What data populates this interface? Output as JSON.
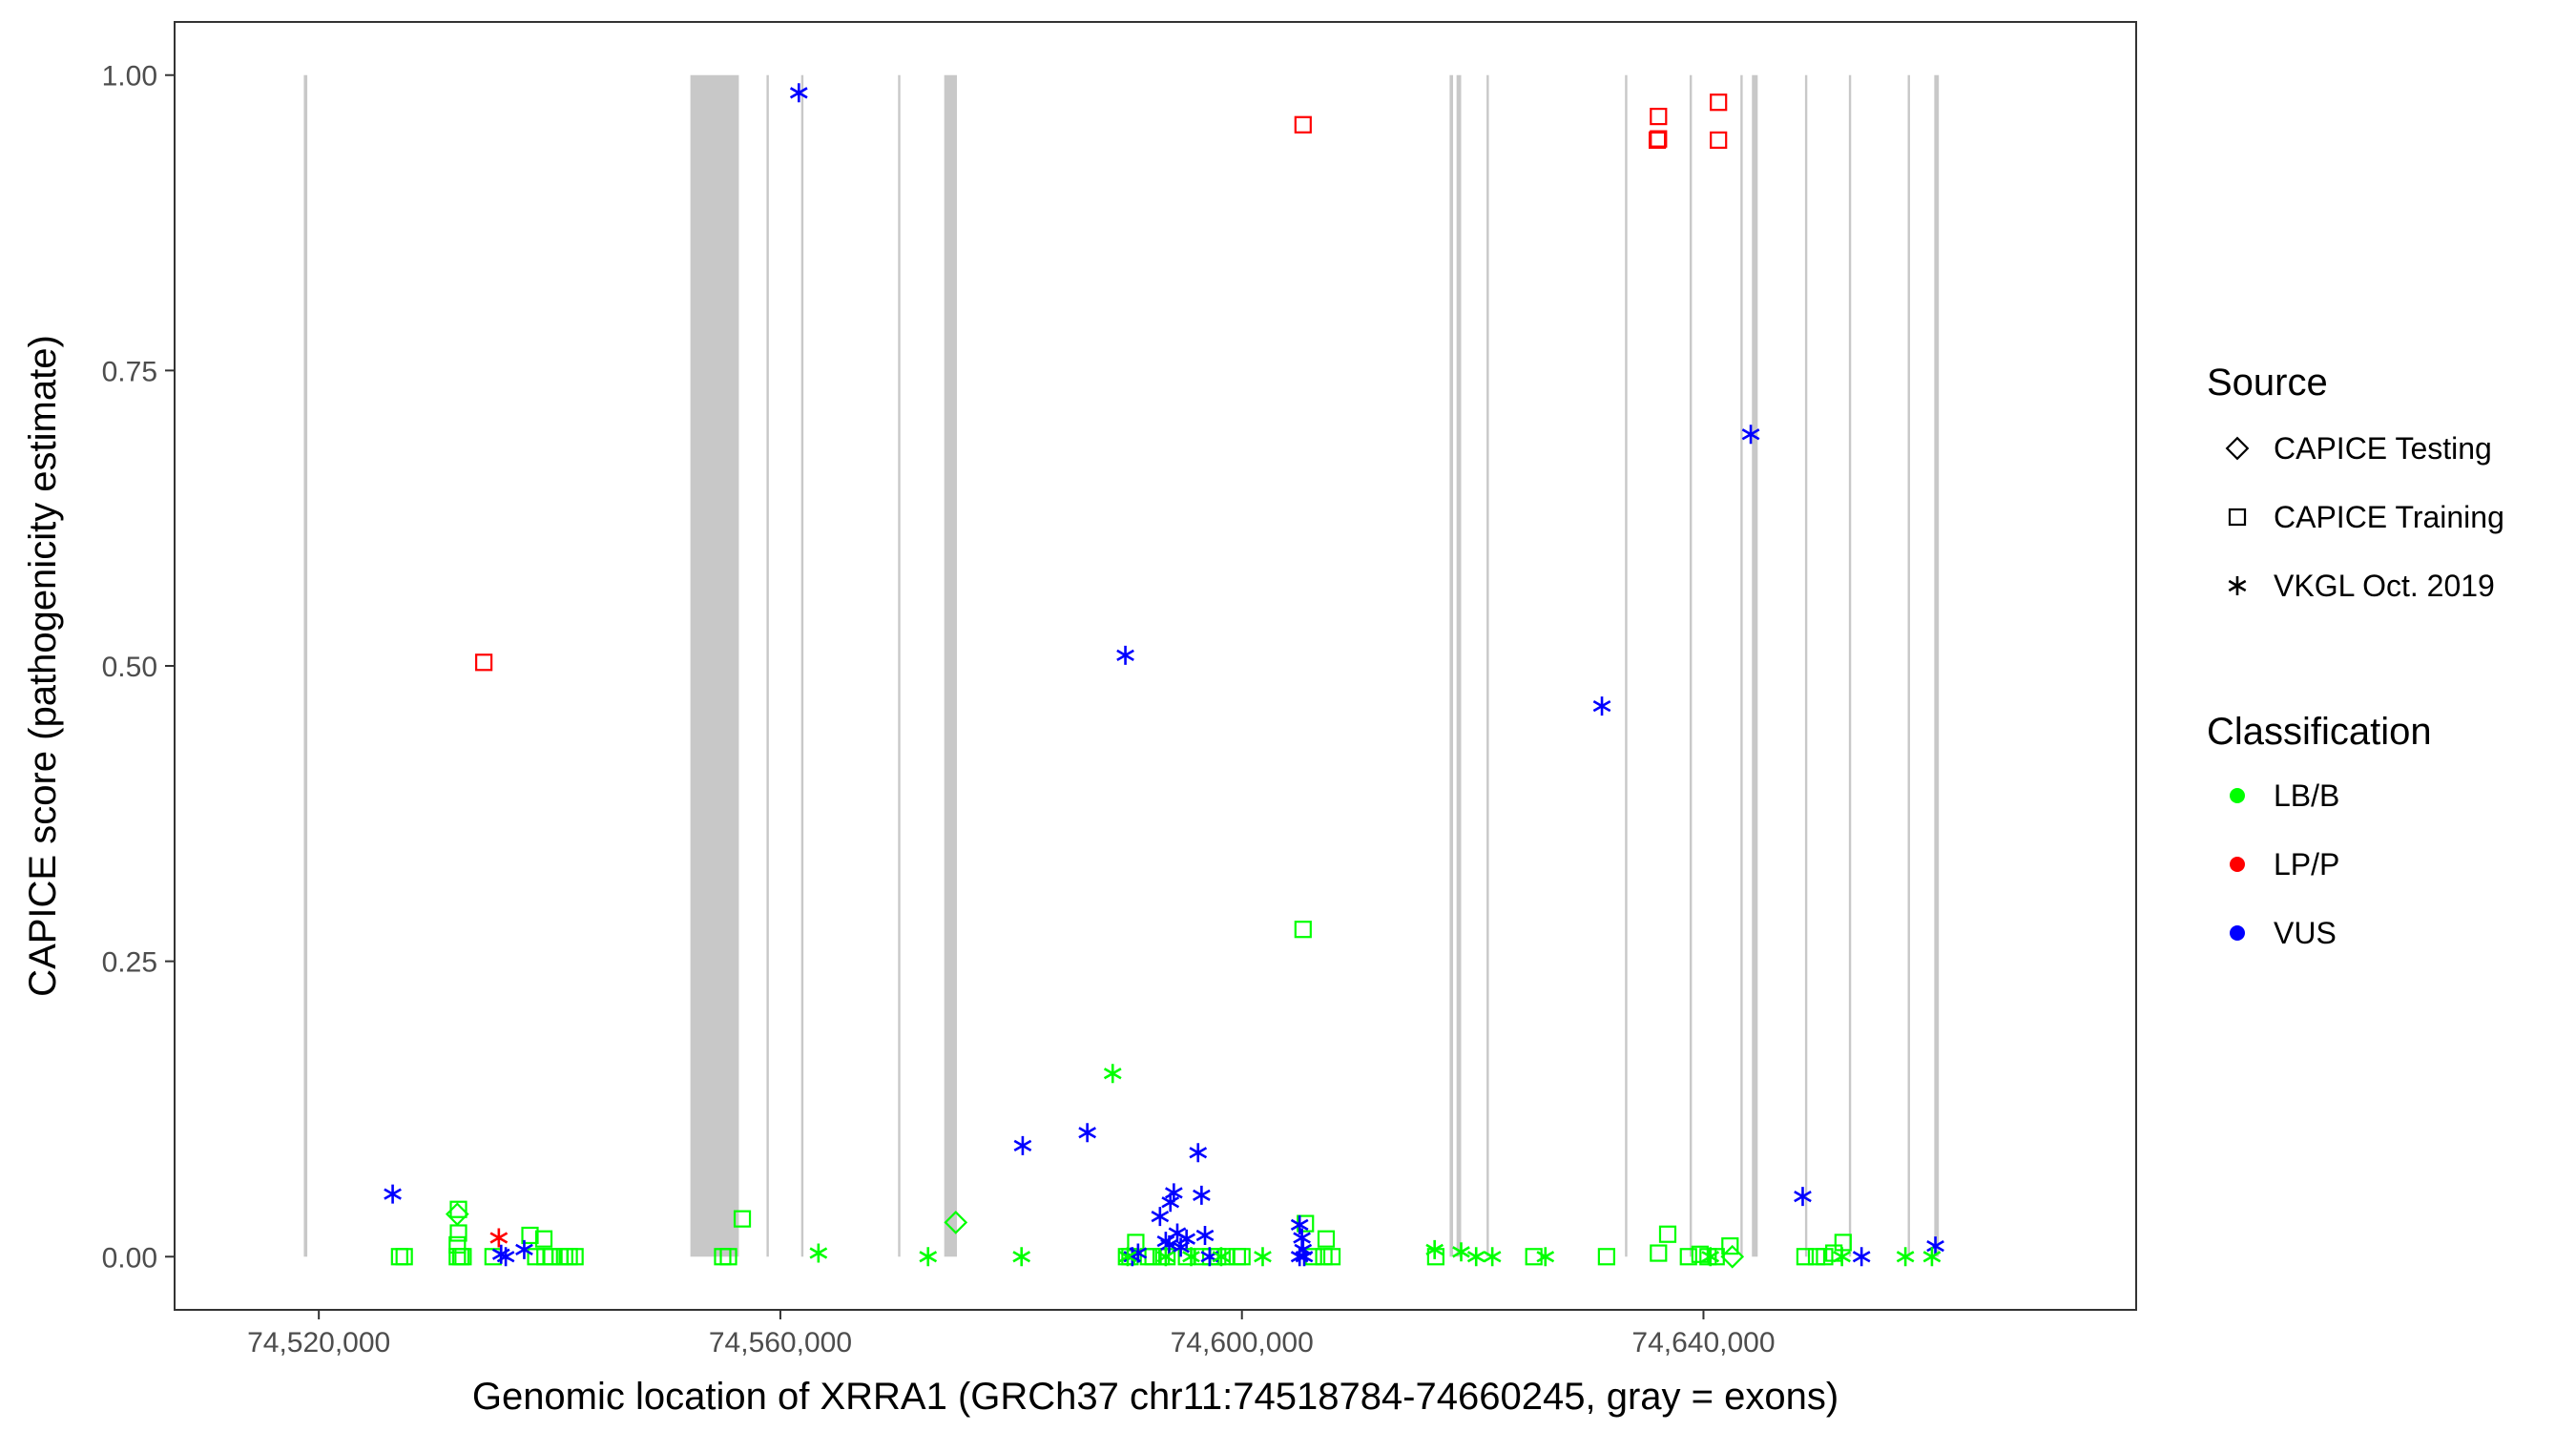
{
  "chart_data": {
    "type": "scatter",
    "xlabel": "Genomic location of XRRA1 (GRCh37 chr11:74518784-74660245, gray = exons)",
    "ylabel": "CAPICE score (pathogenicity estimate)",
    "xlim": [
      74507500,
      74677500
    ],
    "ylim": [
      -0.045,
      1.045
    ],
    "x_ticks": [
      74520000,
      74560000,
      74600000,
      74640000
    ],
    "x_tick_labels": [
      "74,520,000",
      "74,560,000",
      "74,600,000",
      "74,640,000"
    ],
    "y_ticks": [
      0.0,
      0.25,
      0.5,
      0.75,
      1.0
    ],
    "y_tick_labels": [
      "0.00",
      "0.25",
      "0.50",
      "0.75",
      "1.00"
    ],
    "grid": false,
    "legend_position": "right",
    "legend": {
      "shape_title": "Source",
      "shapes": [
        {
          "label": "CAPICE Testing",
          "shape": "diamond"
        },
        {
          "label": "CAPICE Training",
          "shape": "square"
        },
        {
          "label": "VKGL Oct. 2019",
          "shape": "asterisk"
        }
      ],
      "color_title": "Classification",
      "colors": [
        {
          "label": "LB/B",
          "color": "#00ff00"
        },
        {
          "label": "LP/P",
          "color": "#ff0000"
        },
        {
          "label": "VUS",
          "color": "#0000ff"
        }
      ]
    },
    "exons": [
      [
        74518700,
        74519000
      ],
      [
        74552200,
        74556400
      ],
      [
        74558800,
        74559000
      ],
      [
        74561800,
        74562000
      ],
      [
        74570200,
        74570400
      ],
      [
        74574200,
        74575300
      ],
      [
        74618000,
        74618300
      ],
      [
        74618600,
        74619000
      ],
      [
        74621200,
        74621400
      ],
      [
        74633200,
        74633400
      ],
      [
        74638800,
        74639000
      ],
      [
        74643200,
        74643400
      ],
      [
        74644200,
        74644700
      ],
      [
        74648800,
        74649000
      ],
      [
        74652600,
        74652800
      ],
      [
        74657700,
        74657900
      ],
      [
        74660000,
        74660400
      ]
    ],
    "series": [
      {
        "source": "CAPICE Training",
        "classification": "LP/P",
        "points": [
          [
            74534300,
            0.503
          ],
          [
            74605300,
            0.958
          ],
          [
            74636100,
            0.965
          ],
          [
            74636100,
            0.946
          ],
          [
            74636000,
            0.945
          ],
          [
            74641300,
            0.977
          ],
          [
            74641300,
            0.945
          ]
        ]
      },
      {
        "source": "CAPICE Training",
        "classification": "LB/B",
        "points": [
          [
            74605300,
            0.277
          ],
          [
            74527000,
            0.0
          ],
          [
            74527400,
            0.0
          ],
          [
            74532100,
            0.04
          ],
          [
            74532100,
            0.02
          ],
          [
            74532000,
            0.01
          ],
          [
            74532000,
            0.0
          ],
          [
            74532300,
            0.0
          ],
          [
            74532500,
            0.0
          ],
          [
            74535100,
            0.0
          ],
          [
            74538300,
            0.018
          ],
          [
            74539500,
            0.015
          ],
          [
            74538800,
            0.0
          ],
          [
            74539600,
            0.0
          ],
          [
            74540200,
            0.0
          ],
          [
            74540900,
            0.0
          ],
          [
            74541300,
            0.0
          ],
          [
            74541700,
            0.0
          ],
          [
            74542200,
            0.0
          ],
          [
            74555000,
            0.0
          ],
          [
            74555500,
            0.0
          ],
          [
            74556700,
            0.032
          ],
          [
            74590000,
            0.0
          ],
          [
            74590300,
            0.0
          ],
          [
            74590800,
            0.012
          ],
          [
            74591900,
            0.0
          ],
          [
            74592300,
            0.0
          ],
          [
            74593000,
            0.0
          ],
          [
            74593500,
            0.0
          ],
          [
            74595200,
            0.0
          ],
          [
            74596600,
            0.0
          ],
          [
            74597300,
            0.0
          ],
          [
            74597900,
            0.0
          ],
          [
            74598600,
            0.0
          ],
          [
            74599600,
            0.0
          ],
          [
            74600000,
            0.0
          ],
          [
            74605500,
            0.028
          ],
          [
            74607300,
            0.015
          ],
          [
            74606200,
            0.0
          ],
          [
            74607100,
            0.0
          ],
          [
            74607800,
            0.0
          ],
          [
            74616800,
            0.0
          ],
          [
            74625300,
            0.0
          ],
          [
            74631600,
            0.0
          ],
          [
            74636100,
            0.003
          ],
          [
            74636900,
            0.019
          ],
          [
            74638700,
            0.0
          ],
          [
            74639700,
            0.002
          ],
          [
            74640400,
            0.0
          ],
          [
            74641100,
            0.0
          ],
          [
            74642300,
            0.009
          ],
          [
            74648800,
            0.0
          ],
          [
            74649800,
            0.0
          ],
          [
            74650500,
            0.0
          ],
          [
            74651300,
            0.003
          ],
          [
            74652100,
            0.012
          ]
        ]
      },
      {
        "source": "CAPICE Testing",
        "classification": "LB/B",
        "points": [
          [
            74532000,
            0.036
          ],
          [
            74575200,
            0.029
          ],
          [
            74642500,
            0.0
          ]
        ]
      },
      {
        "source": "VKGL Oct. 2019",
        "classification": "VUS",
        "points": [
          [
            74561600,
            0.985
          ],
          [
            74644100,
            0.696
          ],
          [
            74589900,
            0.509
          ],
          [
            74631200,
            0.466
          ],
          [
            74526400,
            0.053
          ],
          [
            74535800,
            0.002
          ],
          [
            74536200,
            0.0
          ],
          [
            74537800,
            0.006
          ],
          [
            74581000,
            0.094
          ],
          [
            74586600,
            0.105
          ],
          [
            74590500,
            0.0
          ],
          [
            74591000,
            0.003
          ],
          [
            74592900,
            0.034
          ],
          [
            74593400,
            0.013
          ],
          [
            74593800,
            0.046
          ],
          [
            74594100,
            0.054
          ],
          [
            74594400,
            0.02
          ],
          [
            74594700,
            0.008
          ],
          [
            74595200,
            0.015
          ],
          [
            74596200,
            0.088
          ],
          [
            74596500,
            0.052
          ],
          [
            74596800,
            0.018
          ],
          [
            74597200,
            0.0
          ],
          [
            74593700,
            0.01
          ],
          [
            74605000,
            0.027
          ],
          [
            74605200,
            0.016
          ],
          [
            74605300,
            0.006
          ],
          [
            74605000,
            0.0
          ],
          [
            74605400,
            0.0
          ],
          [
            74648600,
            0.051
          ],
          [
            74653700,
            0.0
          ],
          [
            74660100,
            0.009
          ]
        ]
      },
      {
        "source": "VKGL Oct. 2019",
        "classification": "LB/B",
        "points": [
          [
            74588800,
            0.155
          ],
          [
            74563300,
            0.003
          ],
          [
            74572800,
            0.0
          ],
          [
            74580900,
            0.0
          ],
          [
            74590100,
            0.0
          ],
          [
            74593400,
            0.0
          ],
          [
            74595600,
            0.0
          ],
          [
            74598200,
            0.0
          ],
          [
            74601800,
            0.0
          ],
          [
            74616700,
            0.006
          ],
          [
            74619000,
            0.004
          ],
          [
            74620300,
            0.0
          ],
          [
            74621700,
            0.0
          ],
          [
            74626300,
            0.0
          ],
          [
            74640600,
            0.0
          ],
          [
            74652000,
            0.0
          ],
          [
            74657500,
            0.0
          ],
          [
            74659800,
            0.0
          ]
        ]
      },
      {
        "source": "VKGL Oct. 2019",
        "classification": "LP/P",
        "points": [
          [
            74535600,
            0.016
          ]
        ]
      }
    ]
  },
  "colors": {
    "LB/B": "#00ff00",
    "LP/P": "#ff0000",
    "VUS": "#0000ff",
    "exon": "#c8c8c8"
  }
}
